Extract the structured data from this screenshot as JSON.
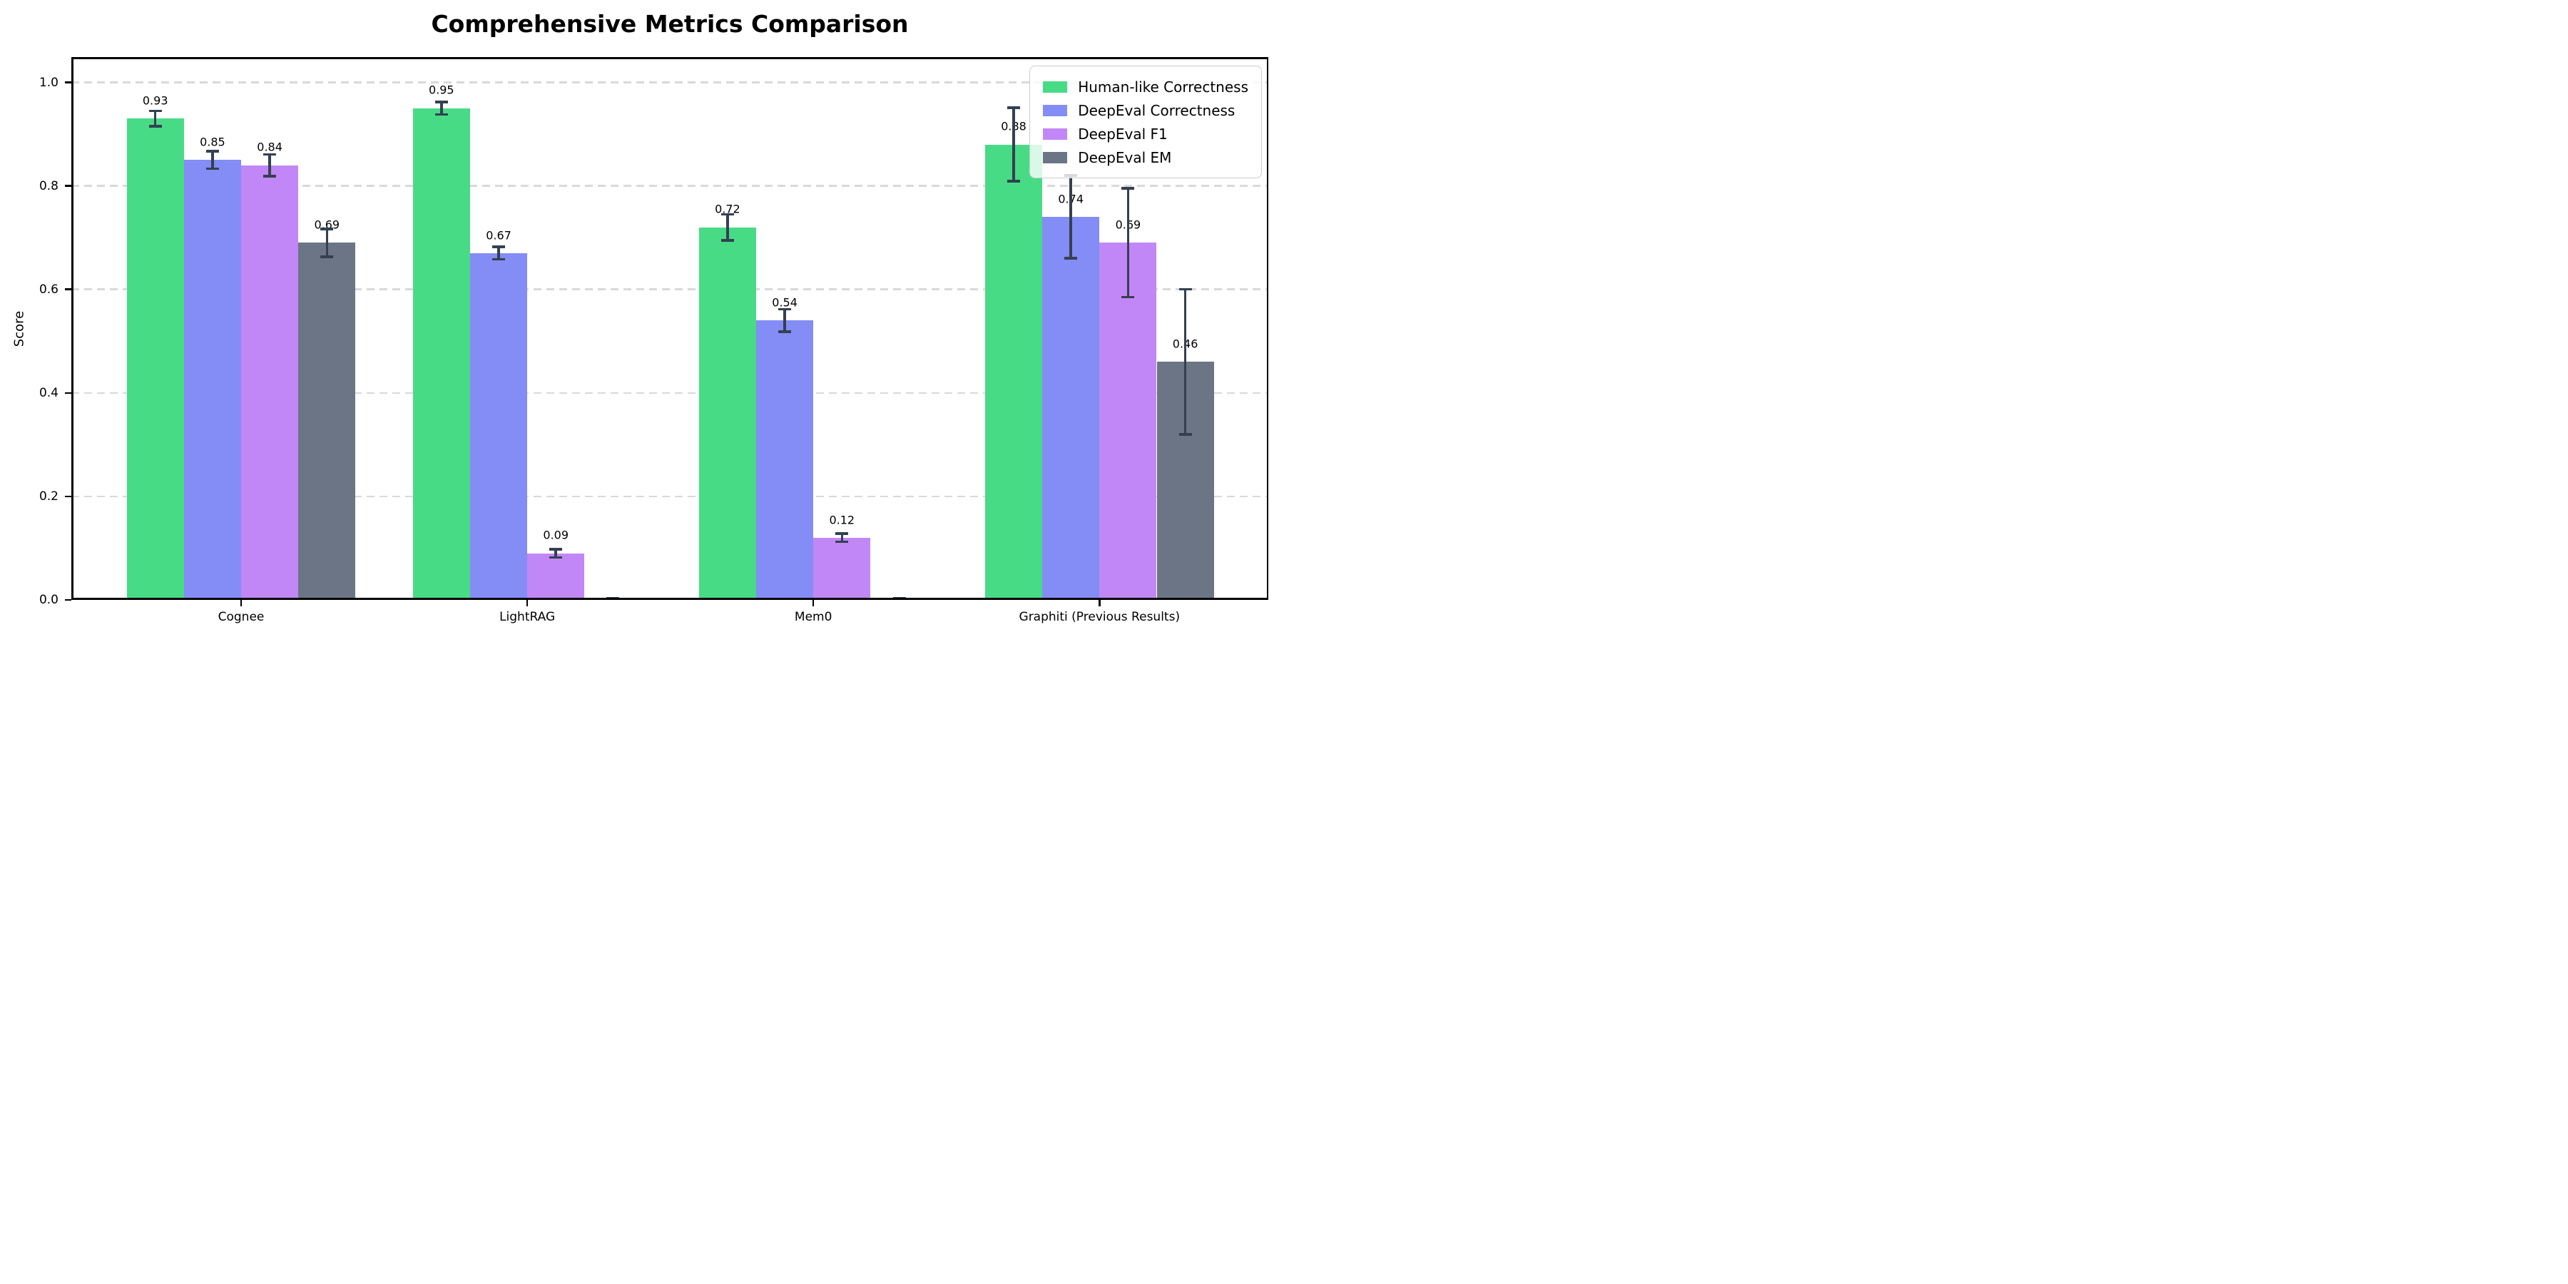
{
  "chart_data": {
    "type": "bar",
    "title": "Comprehensive Metrics Comparison",
    "ylabel": "Score",
    "xlabel": "",
    "categories": [
      "Cognee",
      "LightRAG",
      "Mem0",
      "Graphiti (Previous Results)"
    ],
    "yticks": [
      "0.0",
      "0.2",
      "0.4",
      "0.6",
      "0.8",
      "1.0"
    ],
    "ylim": [
      0,
      1.05
    ],
    "grid": "horizontal dashed lines at each ytick",
    "legend_position": "upper right",
    "series": [
      {
        "name": "Human-like Correctness",
        "color": "#48db86",
        "values": [
          0.93,
          0.95,
          0.72,
          0.88
        ],
        "errors": [
          0.015,
          0.012,
          0.025,
          0.071
        ],
        "labels": [
          "0.93",
          "0.95",
          "0.72",
          "0.88"
        ]
      },
      {
        "name": "DeepEval Correctness",
        "color": "#838df5",
        "values": [
          0.85,
          0.67,
          0.54,
          0.74
        ],
        "errors": [
          0.017,
          0.012,
          0.022,
          0.08
        ],
        "labels": [
          "0.85",
          "0.67",
          "0.54",
          "0.74"
        ]
      },
      {
        "name": "DeepEval F1",
        "color": "#c287f7",
        "values": [
          0.84,
          0.09,
          0.12,
          0.69
        ],
        "errors": [
          0.021,
          0.008,
          0.008,
          0.105
        ],
        "labels": [
          "0.84",
          "0.09",
          "0.12",
          "0.69"
        ]
      },
      {
        "name": "DeepEval EM",
        "color": "#6b7585",
        "values": [
          0.69,
          0.0,
          0.0,
          0.46
        ],
        "errors": [
          0.027,
          0.003,
          0.003,
          0.14
        ],
        "labels": [
          "0.69",
          "",
          "",
          "0.46"
        ]
      }
    ],
    "error_bar_color": "#344050",
    "grid_color": "#d9d9d9",
    "background": "#ffffff"
  }
}
